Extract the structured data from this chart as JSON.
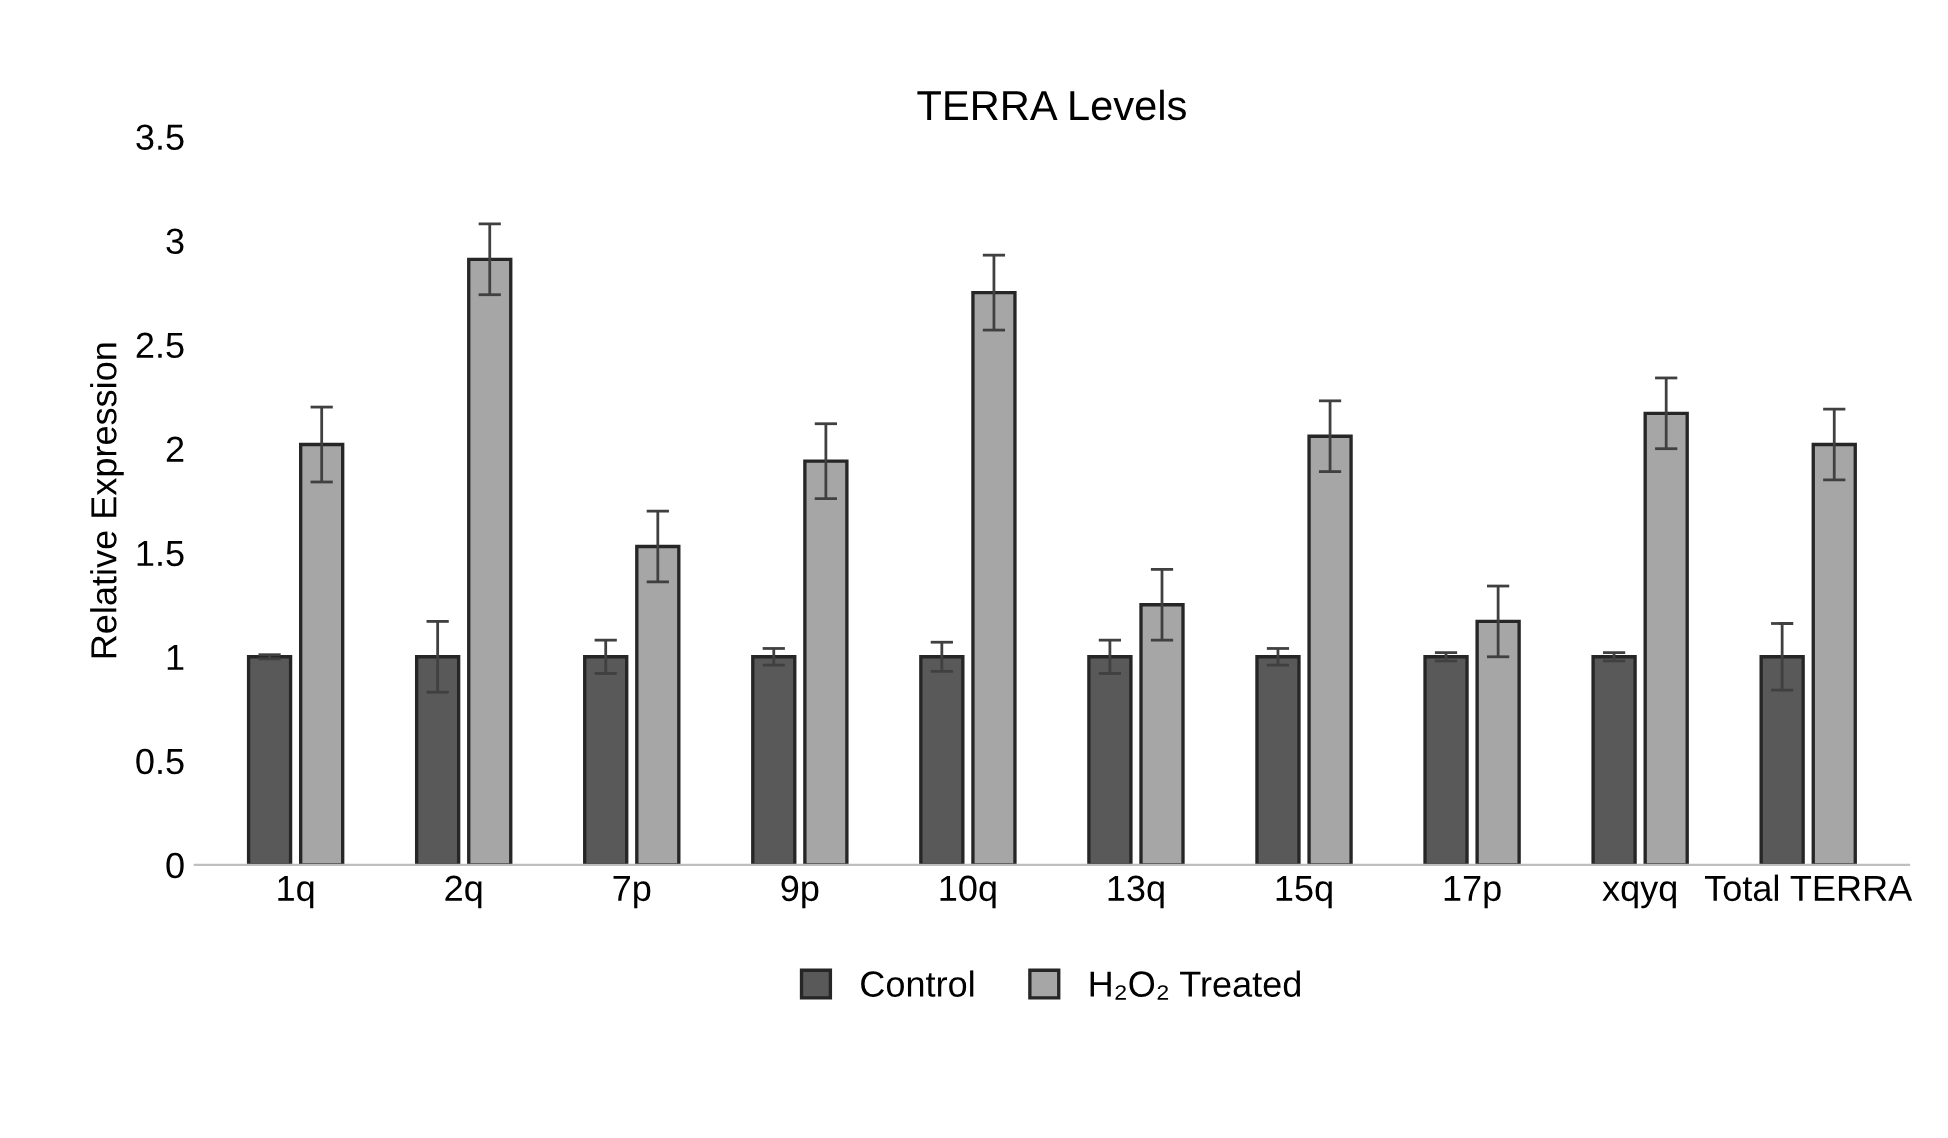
{
  "chart_data": {
    "type": "bar",
    "title": "TERRA Levels",
    "ylabel": "Relative Expression",
    "categories": [
      "1q",
      "2q",
      "7p",
      "9p",
      "10q",
      "13q",
      "15q",
      "17p",
      "xqyq",
      "Total TERRA"
    ],
    "series": [
      {
        "name": "Control",
        "color": "#595959",
        "values": [
          1,
          1,
          1,
          1,
          1,
          1,
          1,
          1,
          1,
          1
        ],
        "errors": [
          0.01,
          0.17,
          0.08,
          0.04,
          0.07,
          0.08,
          0.04,
          0.02,
          0.02,
          0.16
        ]
      },
      {
        "name": "H₂O₂ Treated",
        "color": "#a6a6a6",
        "values": [
          2.02,
          2.91,
          1.53,
          1.94,
          2.75,
          1.25,
          2.06,
          1.17,
          2.17,
          2.02
        ],
        "errors": [
          0.18,
          0.17,
          0.17,
          0.18,
          0.18,
          0.17,
          0.17,
          0.17,
          0.17,
          0.17
        ]
      }
    ],
    "ylim": [
      0,
      3.5
    ],
    "yticks": [
      0,
      0.5,
      1,
      1.5,
      2,
      2.5,
      3,
      3.5
    ],
    "grid": false,
    "legend": "bottom"
  }
}
